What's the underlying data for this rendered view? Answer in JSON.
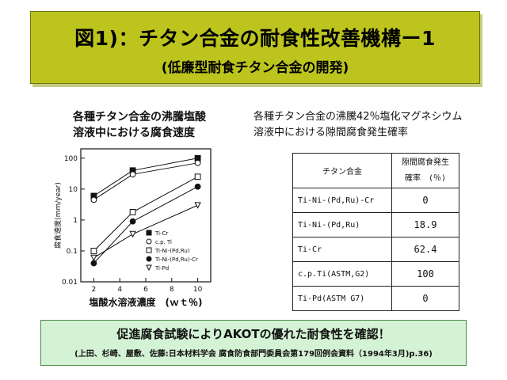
{
  "title": {
    "main": "図1)：チタン合金の耐食性改善機構ー1",
    "sub": "(低廉型耐食チタン合金の開発)"
  },
  "left_panel": {
    "caption_line1": "各種チタン合金の沸騰塩酸",
    "caption_line2": "溶液中における腐食速度"
  },
  "right_panel": {
    "caption_line1": "各種チタン合金の沸騰42％塩化マグネシウム",
    "caption_line2": "溶液中における隙間腐食発生確率",
    "table": {
      "header_alloy": "チタン合金",
      "header_prob_line1": "隙間腐食発生",
      "header_prob_line2": "確率　(％)",
      "rows": [
        {
          "alloy": "Ti-Ni-(Pd,Ru)-Cr",
          "value": "0"
        },
        {
          "alloy": "Ti-Ni-(Pd,Ru)",
          "value": "18.9"
        },
        {
          "alloy": "Ti-Cr",
          "value": "62.4"
        },
        {
          "alloy": "c.p.Ti(ASTM,G2)",
          "value": "100"
        },
        {
          "alloy": "Ti-Pd(ASTM G7)",
          "value": "0"
        }
      ]
    }
  },
  "chart_data": {
    "type": "scatter",
    "xlabel": "塩酸水溶液濃度　(ｗｔ％)",
    "ylabel": "腐食速度(mm/year)",
    "x_ticks": [
      "2",
      "4",
      "6",
      "8",
      "10"
    ],
    "y_ticks": [
      "0.01",
      "0.1",
      "1",
      "10",
      "100"
    ],
    "xlim": [
      1,
      11
    ],
    "ylim": [
      0.01,
      200
    ],
    "y_scale": "log",
    "legend_position": "inside-bottom-right",
    "series": [
      {
        "name": "Ti-Cr",
        "marker": "filled-square",
        "x": [
          2,
          5,
          10
        ],
        "y": [
          6,
          40,
          100
        ]
      },
      {
        "name": "c.p. Ti",
        "marker": "open-circle",
        "x": [
          2,
          5,
          10
        ],
        "y": [
          4.5,
          30,
          70
        ]
      },
      {
        "name": "Ti-Ni-(Pd,Ru)",
        "marker": "open-square",
        "x": [
          2,
          5,
          10
        ],
        "y": [
          0.1,
          1.8,
          25
        ]
      },
      {
        "name": "Ti-Ni-(Pd,Ru)-Cr",
        "marker": "filled-circle",
        "x": [
          2,
          5,
          10
        ],
        "y": [
          0.04,
          0.9,
          12
        ]
      },
      {
        "name": "Ti-Pd",
        "marker": "open-triangle",
        "x": [
          2,
          5,
          10
        ],
        "y": [
          0.06,
          0.35,
          3
        ]
      }
    ]
  },
  "bottom": {
    "main": "促進腐食試験によりAKOTの優れた耐食性を確認！",
    "reference": "(上田、杉崎、屋敷、佐藤:日本材料学会 腐食防食部門委員会第179回例会資料（1994年3月)p.36)"
  },
  "colors": {
    "title_banner": "#bcc41d",
    "bottom_box": "#d4f2d4"
  }
}
